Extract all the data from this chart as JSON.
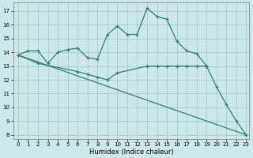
{
  "title": "",
  "xlabel": "Humidex (Indice chaleur)",
  "bg_color": "#cde8e8",
  "grid_color": "#aacece",
  "line_color": "#2e7d6e",
  "ylim_min": 7.7,
  "ylim_max": 17.6,
  "xlim_min": -0.5,
  "xlim_max": 23.3,
  "yticks": [
    8,
    9,
    10,
    11,
    12,
    13,
    14,
    15,
    16,
    17
  ],
  "xticks": [
    0,
    1,
    2,
    3,
    4,
    5,
    6,
    7,
    8,
    9,
    10,
    11,
    12,
    13,
    14,
    15,
    16,
    17,
    18,
    19,
    20,
    21,
    22,
    23
  ],
  "line1_x": [
    0,
    1,
    2,
    3,
    4,
    5,
    6,
    7,
    8,
    9,
    10,
    11,
    12,
    13,
    14,
    15,
    16,
    17,
    18,
    19
  ],
  "line1_y": [
    13.8,
    14.1,
    14.1,
    13.2,
    14.0,
    14.2,
    14.3,
    13.6,
    13.5,
    15.3,
    15.9,
    15.3,
    15.3,
    17.2,
    16.6,
    16.4,
    14.8,
    14.1,
    13.9,
    13.0
  ],
  "line2_x": [
    0,
    2,
    6,
    7,
    8,
    9,
    10,
    13,
    14,
    15,
    16,
    17,
    18,
    19
  ],
  "line2_y": [
    13.8,
    13.2,
    12.6,
    12.4,
    12.2,
    12.0,
    12.5,
    13.0,
    13.0,
    13.0,
    13.0,
    13.0,
    13.0,
    13.0
  ],
  "line3_x": [
    0,
    23
  ],
  "line3_y": [
    13.8,
    8.0
  ],
  "line4_x": [
    19,
    20,
    21,
    22,
    23
  ],
  "line4_y": [
    13.0,
    11.5,
    10.2,
    9.0,
    8.0
  ]
}
